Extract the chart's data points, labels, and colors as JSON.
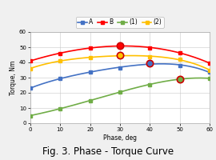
{
  "title": "Fig. 3. Phase - Torque Curve",
  "xlabel": "Phase, deg",
  "ylabel": "Torque, Nm",
  "xlim": [
    0,
    60
  ],
  "ylim": [
    0,
    60
  ],
  "xticks": [
    0,
    10,
    20,
    30,
    40,
    50,
    60
  ],
  "yticks": [
    0,
    10,
    20,
    30,
    40,
    50,
    60
  ],
  "series": {
    "A": {
      "x": [
        0,
        10,
        20,
        30,
        40,
        50,
        60
      ],
      "y": [
        23,
        29.5,
        33.5,
        36.5,
        39.5,
        38,
        33.5
      ],
      "color": "#4472C4",
      "marker": "s",
      "linewidth": 1.2,
      "markersize": 3,
      "highlight_idx": 4,
      "highlight_color": "#FF0000"
    },
    "B": {
      "x": [
        0,
        10,
        20,
        30,
        40,
        50,
        60
      ],
      "y": [
        41,
        46,
        49.5,
        51,
        49.5,
        46.5,
        39.5
      ],
      "color": "#FF0000",
      "marker": "s",
      "linewidth": 1.2,
      "markersize": 3,
      "highlight_idx": 3,
      "highlight_color": "#FF0000"
    },
    "(1)": {
      "x": [
        0,
        10,
        20,
        30,
        40,
        50,
        60
      ],
      "y": [
        5,
        9.5,
        15,
        20.5,
        25.5,
        29,
        29.5
      ],
      "color": "#70AD47",
      "marker": "s",
      "linewidth": 1.2,
      "markersize": 3,
      "highlight_idx": 5,
      "highlight_color": "#FF0000"
    },
    "(2)": {
      "x": [
        0,
        10,
        20,
        30,
        40,
        50,
        60
      ],
      "y": [
        36,
        41,
        43,
        45,
        43.5,
        42,
        35
      ],
      "color": "#FFC000",
      "marker": "s",
      "linewidth": 1.2,
      "markersize": 3,
      "highlight_idx": 3,
      "highlight_color": "#FF0000"
    }
  },
  "bg_color": "#F0F0F0",
  "plot_bg_color": "#FFFFFF",
  "grid_color": "#C8C8C8",
  "title_fontsize": 8.5,
  "axis_label_fontsize": 5.5,
  "tick_fontsize": 5,
  "legend_fontsize": 5.5
}
